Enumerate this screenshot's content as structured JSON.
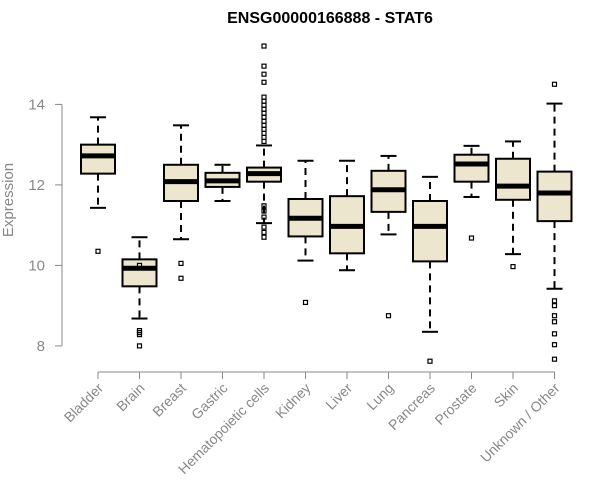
{
  "chart_data": {
    "type": "boxplot",
    "title": "ENSG00000166888 - STAT6",
    "xlabel": "",
    "ylabel": "Expression",
    "ylim": [
      7.6,
      15.6
    ],
    "yticks": [
      8,
      10,
      12,
      14
    ],
    "box_fill": "#ede6cf",
    "median_color": "#000000",
    "categories": [
      "Bladder",
      "Brain",
      "Breast",
      "Gastric",
      "Hematopoietic cells",
      "Kidney",
      "Liver",
      "Lung",
      "Pancreas",
      "Prostate",
      "Skin",
      "Unknown / Other"
    ],
    "boxes": [
      {
        "name": "Bladder",
        "whisker_low": 11.43,
        "q1": 12.28,
        "median": 12.72,
        "q3": 13.0,
        "whisker_high": 13.68,
        "outliers": [
          10.35
        ]
      },
      {
        "name": "Brain",
        "whisker_low": 8.68,
        "q1": 9.48,
        "median": 9.93,
        "q3": 10.15,
        "whisker_high": 10.7,
        "outliers": [
          10.0,
          8.38,
          8.33,
          8.28,
          8.0
        ]
      },
      {
        "name": "Breast",
        "whisker_low": 10.65,
        "q1": 11.6,
        "median": 12.08,
        "q3": 12.5,
        "whisker_high": 13.48,
        "outliers": [
          10.05,
          9.68
        ]
      },
      {
        "name": "Gastric",
        "whisker_low": 11.6,
        "q1": 11.95,
        "median": 12.1,
        "q3": 12.3,
        "whisker_high": 12.5,
        "outliers": []
      },
      {
        "name": "Hematopoietic cells",
        "whisker_low": 11.05,
        "q1": 12.08,
        "median": 12.28,
        "q3": 12.43,
        "whisker_high": 12.98,
        "outliers": [
          15.45,
          14.95,
          14.75,
          14.55,
          14.18,
          14.08,
          13.98,
          13.88,
          13.78,
          13.68,
          13.58,
          13.48,
          13.38,
          13.28,
          13.18,
          13.08,
          11.48,
          11.35,
          11.2,
          10.95,
          10.82,
          10.7
        ]
      },
      {
        "name": "Kidney",
        "whisker_low": 10.12,
        "q1": 10.72,
        "median": 11.17,
        "q3": 11.65,
        "whisker_high": 12.6,
        "outliers": [
          9.08
        ]
      },
      {
        "name": "Liver",
        "whisker_low": 9.88,
        "q1": 10.3,
        "median": 10.97,
        "q3": 11.72,
        "whisker_high": 12.6,
        "outliers": []
      },
      {
        "name": "Lung",
        "whisker_low": 10.77,
        "q1": 11.33,
        "median": 11.88,
        "q3": 12.35,
        "whisker_high": 12.72,
        "outliers": [
          8.75
        ]
      },
      {
        "name": "Pancreas",
        "whisker_low": 8.35,
        "q1": 10.1,
        "median": 10.97,
        "q3": 11.6,
        "whisker_high": 12.2,
        "outliers": [
          7.62
        ]
      },
      {
        "name": "Prostate",
        "whisker_low": 11.7,
        "q1": 12.08,
        "median": 12.52,
        "q3": 12.75,
        "whisker_high": 12.97,
        "outliers": [
          10.68
        ]
      },
      {
        "name": "Skin",
        "whisker_low": 10.28,
        "q1": 11.63,
        "median": 11.97,
        "q3": 12.65,
        "whisker_high": 13.08,
        "outliers": [
          9.97
        ]
      },
      {
        "name": "Unknown / Other",
        "whisker_low": 9.42,
        "q1": 11.1,
        "median": 11.8,
        "q3": 12.33,
        "whisker_high": 14.02,
        "outliers": [
          14.5,
          9.12,
          9.0,
          8.75,
          8.6,
          8.3,
          8.03,
          7.67
        ]
      }
    ]
  }
}
